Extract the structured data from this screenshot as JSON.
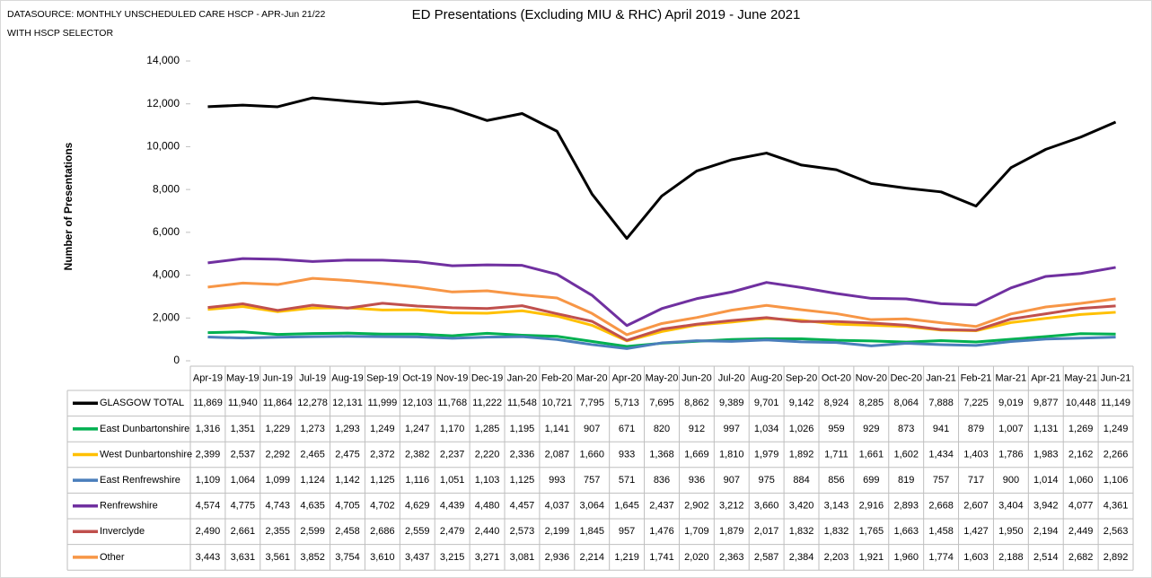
{
  "chart_data": {
    "type": "line",
    "title": "ED Presentations (Excluding MIU & RHC) April 2019 - June 2021",
    "annotations": [
      "DATASOURCE: MONTHLY UNSCHEDULED CARE HSCP - APR-Jun 21/22",
      "WITH HSCP SELECTOR"
    ],
    "y_label": "Number of Presentations",
    "categories": [
      "Apr-19",
      "May-19",
      "Jun-19",
      "Jul-19",
      "Aug-19",
      "Sep-19",
      "Oct-19",
      "Nov-19",
      "Dec-19",
      "Jan-20",
      "Feb-20",
      "Mar-20",
      "Apr-20",
      "May-20",
      "Jun-20",
      "Jul-20",
      "Aug-20",
      "Sep-20",
      "Oct-20",
      "Nov-20",
      "Dec-20",
      "Jan-21",
      "Feb-21",
      "Mar-21",
      "Apr-21",
      "May-21",
      "Jun-21"
    ],
    "ylim": [
      0,
      14000
    ],
    "yticks": [
      0,
      {
        "value": 2000,
        "label": "2,000"
      },
      {
        "value": 4000,
        "label": "4,000"
      },
      {
        "value": 6000,
        "label": "6,000"
      },
      {
        "value": 8000,
        "label": "8,000"
      },
      {
        "value": 10000,
        "label": "10,000"
      },
      {
        "value": 12000,
        "label": "12,000"
      },
      {
        "value": 14000,
        "label": "14,000"
      }
    ],
    "grid": false,
    "series": [
      {
        "name": "GLASGOW TOTAL",
        "color": "#000000",
        "values": [
          11869,
          11940,
          11864,
          12278,
          12131,
          11999,
          12103,
          11768,
          11222,
          11548,
          10721,
          7795,
          5713,
          7695,
          8862,
          9389,
          9701,
          9142,
          8924,
          8285,
          8064,
          7888,
          7225,
          9019,
          9877,
          10448,
          11149
        ],
        "value_labels": [
          "11,869",
          "11,940",
          "11,864",
          "12,278",
          "12,131",
          "11,999",
          "12,103",
          "11,768",
          "11,222",
          "11,548",
          "10,721",
          "7,795",
          "5,713",
          "7,695",
          "8,862",
          "9,389",
          "9,701",
          "9,142",
          "8,924",
          "8,285",
          "8,064",
          "7,888",
          "7,225",
          "9,019",
          "9,877",
          "10,448",
          "11,149"
        ]
      },
      {
        "name": "East Dunbartonshire",
        "color": "#00b050",
        "values": [
          1316,
          1351,
          1229,
          1273,
          1293,
          1249,
          1247,
          1170,
          1285,
          1195,
          1141,
          907,
          671,
          820,
          912,
          997,
          1034,
          1026,
          959,
          929,
          873,
          941,
          879,
          1007,
          1131,
          1269,
          1249
        ],
        "value_labels": [
          "1,316",
          "1,351",
          "1,229",
          "1,273",
          "1,293",
          "1,249",
          "1,247",
          "1,170",
          "1,285",
          "1,195",
          "1,141",
          "907",
          "671",
          "820",
          "912",
          "997",
          "1,034",
          "1,026",
          "959",
          "929",
          "873",
          "941",
          "879",
          "1,007",
          "1,131",
          "1,269",
          "1,249"
        ]
      },
      {
        "name": "West Dunbartonshire",
        "color": "#ffc000",
        "values": [
          2399,
          2537,
          2292,
          2465,
          2475,
          2372,
          2382,
          2237,
          2220,
          2336,
          2087,
          1660,
          933,
          1368,
          1669,
          1810,
          1979,
          1892,
          1711,
          1661,
          1602,
          1434,
          1403,
          1786,
          1983,
          2162,
          2266
        ],
        "value_labels": [
          "2,399",
          "2,537",
          "2,292",
          "2,465",
          "2,475",
          "2,372",
          "2,382",
          "2,237",
          "2,220",
          "2,336",
          "2,087",
          "1,660",
          "933",
          "1,368",
          "1,669",
          "1,810",
          "1,979",
          "1,892",
          "1,711",
          "1,661",
          "1,602",
          "1,434",
          "1,403",
          "1,786",
          "1,983",
          "2,162",
          "2,266"
        ]
      },
      {
        "name": "East Renfrewshire",
        "color": "#4a7ebb",
        "values": [
          1109,
          1064,
          1099,
          1124,
          1142,
          1125,
          1116,
          1051,
          1103,
          1125,
          993,
          757,
          571,
          836,
          936,
          907,
          975,
          884,
          856,
          699,
          819,
          757,
          717,
          900,
          1014,
          1060,
          1106
        ],
        "value_labels": [
          "1,109",
          "1,064",
          "1,099",
          "1,124",
          "1,142",
          "1,125",
          "1,116",
          "1,051",
          "1,103",
          "1,125",
          "993",
          "757",
          "571",
          "836",
          "936",
          "907",
          "975",
          "884",
          "856",
          "699",
          "819",
          "757",
          "717",
          "900",
          "1,014",
          "1,060",
          "1,106"
        ]
      },
      {
        "name": "Renfrewshire",
        "color": "#7030a0",
        "values": [
          4574,
          4775,
          4743,
          4635,
          4705,
          4702,
          4629,
          4439,
          4480,
          4457,
          4037,
          3064,
          1645,
          2437,
          2902,
          3212,
          3660,
          3420,
          3143,
          2916,
          2893,
          2668,
          2607,
          3404,
          3942,
          4077,
          4361
        ],
        "value_labels": [
          "4,574",
          "4,775",
          "4,743",
          "4,635",
          "4,705",
          "4,702",
          "4,629",
          "4,439",
          "4,480",
          "4,457",
          "4,037",
          "3,064",
          "1,645",
          "2,437",
          "2,902",
          "3,212",
          "3,660",
          "3,420",
          "3,143",
          "2,916",
          "2,893",
          "2,668",
          "2,607",
          "3,404",
          "3,942",
          "4,077",
          "4,361"
        ]
      },
      {
        "name": "Inverclyde",
        "color": "#c0504d",
        "values": [
          2490,
          2661,
          2355,
          2599,
          2458,
          2686,
          2559,
          2479,
          2440,
          2573,
          2199,
          1845,
          957,
          1476,
          1709,
          1879,
          2017,
          1832,
          1832,
          1765,
          1663,
          1458,
          1427,
          1950,
          2194,
          2449,
          2563
        ],
        "value_labels": [
          "2,490",
          "2,661",
          "2,355",
          "2,599",
          "2,458",
          "2,686",
          "2,559",
          "2,479",
          "2,440",
          "2,573",
          "2,199",
          "1,845",
          "957",
          "1,476",
          "1,709",
          "1,879",
          "2,017",
          "1,832",
          "1,832",
          "1,765",
          "1,663",
          "1,458",
          "1,427",
          "1,950",
          "2,194",
          "2,449",
          "2,563"
        ]
      },
      {
        "name": "Other",
        "color": "#f79646",
        "values": [
          3443,
          3631,
          3561,
          3852,
          3754,
          3610,
          3437,
          3215,
          3271,
          3081,
          2936,
          2214,
          1219,
          1741,
          2020,
          2363,
          2587,
          2384,
          2203,
          1921,
          1960,
          1774,
          1603,
          2188,
          2514,
          2682,
          2892
        ],
        "value_labels": [
          "3,443",
          "3,631",
          "3,561",
          "3,852",
          "3,754",
          "3,610",
          "3,437",
          "3,215",
          "3,271",
          "3,081",
          "2,936",
          "2,214",
          "1,219",
          "1,741",
          "2,020",
          "2,363",
          "2,587",
          "2,384",
          "2,203",
          "1,921",
          "1,960",
          "1,774",
          "1,603",
          "2,188",
          "2,514",
          "2,682",
          "2,892"
        ]
      }
    ]
  }
}
